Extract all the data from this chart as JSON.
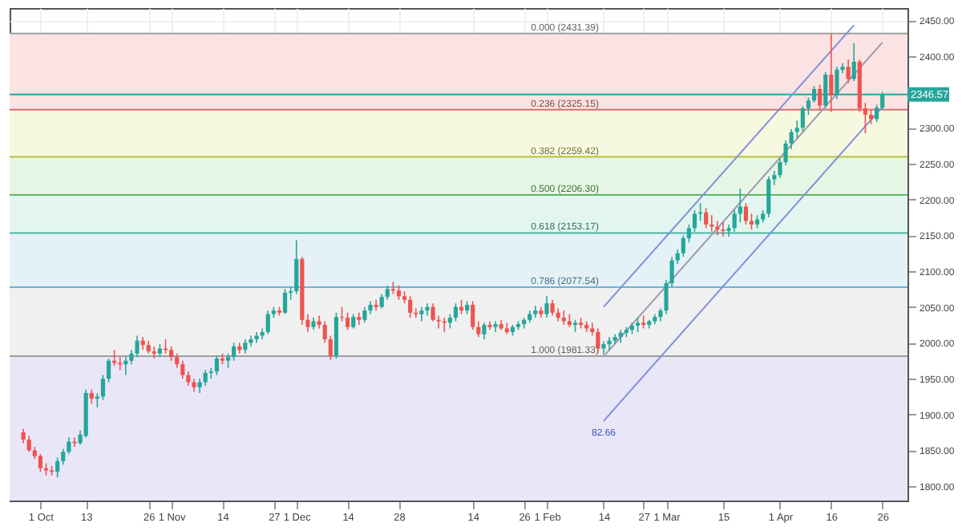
{
  "chart_data": {
    "type": "candlestick",
    "categories": [
      null,
      null,
      null,
      "1 Oct",
      null,
      null,
      null,
      null,
      null,
      null,
      null,
      "13",
      null,
      null,
      null,
      null,
      null,
      null,
      null,
      null,
      null,
      null,
      "26",
      null,
      null,
      null,
      "1 Nov",
      null,
      null,
      null,
      null,
      null,
      null,
      null,
      null,
      "14",
      null,
      null,
      null,
      null,
      null,
      null,
      null,
      null,
      "27",
      null,
      null,
      null,
      "1 Dec",
      null,
      null,
      null,
      null,
      null,
      null,
      null,
      null,
      "14",
      null,
      null,
      null,
      null,
      null,
      null,
      null,
      null,
      "28",
      null,
      null,
      null,
      null,
      null,
      null,
      null,
      null,
      null,
      null,
      null,
      null,
      "14",
      null,
      null,
      null,
      null,
      null,
      null,
      null,
      null,
      "26",
      null,
      null,
      null,
      "1 Feb",
      null,
      null,
      null,
      null,
      null,
      null,
      null,
      null,
      null,
      "14",
      null,
      null,
      null,
      null,
      null,
      null,
      "27",
      null,
      null,
      null,
      "1 Mar",
      null,
      null,
      null,
      null,
      null,
      null,
      null,
      null,
      null,
      "15",
      null,
      null,
      null,
      null,
      null,
      null,
      null,
      null,
      null,
      "1 Apr",
      null,
      null,
      null,
      null,
      null,
      null,
      null,
      null,
      "16",
      null,
      null,
      null,
      null,
      null,
      null,
      null,
      null,
      "26"
    ],
    "ohlc": [
      [
        1875,
        1880,
        1860,
        1865
      ],
      [
        1865,
        1870,
        1848,
        1850
      ],
      [
        1850,
        1855,
        1838,
        1842
      ],
      [
        1842,
        1845,
        1820,
        1825
      ],
      [
        1825,
        1832,
        1815,
        1822
      ],
      [
        1822,
        1828,
        1815,
        1820
      ],
      [
        1820,
        1840,
        1812,
        1835
      ],
      [
        1835,
        1852,
        1830,
        1848
      ],
      [
        1848,
        1868,
        1845,
        1862
      ],
      [
        1862,
        1868,
        1855,
        1860
      ],
      [
        1860,
        1878,
        1858,
        1872
      ],
      [
        1870,
        1935,
        1868,
        1930
      ],
      [
        1930,
        1935,
        1915,
        1922
      ],
      [
        1922,
        1930,
        1910,
        1925
      ],
      [
        1925,
        1955,
        1920,
        1950
      ],
      [
        1950,
        1978,
        1945,
        1975
      ],
      [
        1975,
        1990,
        1968,
        1972
      ],
      [
        1972,
        1980,
        1962,
        1970
      ],
      [
        1970,
        1980,
        1955,
        1975
      ],
      [
        1975,
        1990,
        1970,
        1985
      ],
      [
        1985,
        2010,
        1980,
        2003
      ],
      [
        2003,
        2008,
        1990,
        1997
      ],
      [
        1997,
        2003,
        1985,
        1988
      ],
      [
        1988,
        1995,
        1978,
        1985
      ],
      [
        1985,
        1998,
        1980,
        1992
      ],
      [
        1992,
        2005,
        1985,
        1990
      ],
      [
        1990,
        1995,
        1975,
        1980
      ],
      [
        1980,
        1985,
        1965,
        1970
      ],
      [
        1970,
        1975,
        1950,
        1955
      ],
      [
        1955,
        1960,
        1940,
        1945
      ],
      [
        1945,
        1950,
        1932,
        1938
      ],
      [
        1938,
        1950,
        1930,
        1945
      ],
      [
        1945,
        1962,
        1940,
        1958
      ],
      [
        1958,
        1965,
        1950,
        1960
      ],
      [
        1960,
        1982,
        1955,
        1978
      ],
      [
        1978,
        1985,
        1970,
        1975
      ],
      [
        1975,
        1985,
        1965,
        1980
      ],
      [
        1980,
        2000,
        1975,
        1995
      ],
      [
        1995,
        2000,
        1985,
        1990
      ],
      [
        1990,
        2005,
        1985,
        2000
      ],
      [
        2000,
        2010,
        1995,
        2005
      ],
      [
        2005,
        2015,
        2000,
        2010
      ],
      [
        2010,
        2020,
        2005,
        2015
      ],
      [
        2015,
        2045,
        2012,
        2040
      ],
      [
        2040,
        2050,
        2035,
        2045
      ],
      [
        2045,
        2050,
        2038,
        2042
      ],
      [
        2042,
        2075,
        2040,
        2070
      ],
      [
        2070,
        2078,
        2060,
        2072
      ],
      [
        2072,
        2143,
        2068,
        2117
      ],
      [
        2117,
        2120,
        2025,
        2032
      ],
      [
        2032,
        2040,
        2015,
        2022
      ],
      [
        2022,
        2035,
        2018,
        2030
      ],
      [
        2030,
        2038,
        2020,
        2025
      ],
      [
        2025,
        2030,
        2000,
        2005
      ],
      [
        2005,
        2010,
        1976,
        1982
      ],
      [
        1982,
        2042,
        1978,
        2036
      ],
      [
        2036,
        2050,
        2030,
        2035
      ],
      [
        2035,
        2042,
        2018,
        2022
      ],
      [
        2022,
        2040,
        2020,
        2036
      ],
      [
        2036,
        2042,
        2025,
        2032
      ],
      [
        2032,
        2050,
        2028,
        2045
      ],
      [
        2045,
        2058,
        2040,
        2053
      ],
      [
        2053,
        2060,
        2045,
        2050
      ],
      [
        2050,
        2068,
        2048,
        2064
      ],
      [
        2064,
        2080,
        2060,
        2075
      ],
      [
        2075,
        2085,
        2068,
        2073
      ],
      [
        2073,
        2080,
        2060,
        2065
      ],
      [
        2065,
        2072,
        2055,
        2060
      ],
      [
        2060,
        2065,
        2035,
        2042
      ],
      [
        2042,
        2048,
        2035,
        2040
      ],
      [
        2040,
        2050,
        2030,
        2045
      ],
      [
        2045,
        2055,
        2038,
        2050
      ],
      [
        2050,
        2055,
        2030,
        2032
      ],
      [
        2032,
        2038,
        2020,
        2030
      ],
      [
        2030,
        2035,
        2015,
        2028
      ],
      [
        2028,
        2040,
        2020,
        2035
      ],
      [
        2035,
        2055,
        2030,
        2050
      ],
      [
        2050,
        2060,
        2040,
        2045
      ],
      [
        2045,
        2058,
        2040,
        2053
      ],
      [
        2053,
        2058,
        2018,
        2022
      ],
      [
        2022,
        2030,
        2008,
        2012
      ],
      [
        2012,
        2028,
        2005,
        2025
      ],
      [
        2025,
        2030,
        2018,
        2022
      ],
      [
        2022,
        2030,
        2015,
        2026
      ],
      [
        2026,
        2032,
        2018,
        2020
      ],
      [
        2020,
        2028,
        2012,
        2015
      ],
      [
        2015,
        2025,
        2010,
        2022
      ],
      [
        2022,
        2030,
        2018,
        2026
      ],
      [
        2026,
        2035,
        2020,
        2032
      ],
      [
        2032,
        2045,
        2028,
        2040
      ],
      [
        2040,
        2052,
        2035,
        2045
      ],
      [
        2045,
        2050,
        2035,
        2040
      ],
      [
        2040,
        2065,
        2035,
        2055
      ],
      [
        2055,
        2060,
        2038,
        2042
      ],
      [
        2042,
        2048,
        2030,
        2035
      ],
      [
        2035,
        2045,
        2025,
        2030
      ],
      [
        2030,
        2040,
        2022,
        2025
      ],
      [
        2025,
        2032,
        2015,
        2028
      ],
      [
        2028,
        2035,
        2020,
        2025
      ],
      [
        2025,
        2030,
        2015,
        2020
      ],
      [
        2020,
        2028,
        2010,
        2015
      ],
      [
        2015,
        2020,
        1985,
        1992
      ],
      [
        1992,
        2002,
        1984,
        1998
      ],
      [
        1998,
        2008,
        1990,
        2003
      ],
      [
        2003,
        2012,
        1998,
        2008
      ],
      [
        2008,
        2018,
        2000,
        2014
      ],
      [
        2014,
        2022,
        2008,
        2018
      ],
      [
        2018,
        2028,
        2012,
        2024
      ],
      [
        2024,
        2035,
        2015,
        2028
      ],
      [
        2028,
        2038,
        2020,
        2025
      ],
      [
        2025,
        2032,
        2020,
        2030
      ],
      [
        2030,
        2040,
        2026,
        2036
      ],
      [
        2036,
        2048,
        2030,
        2045
      ],
      [
        2045,
        2088,
        2040,
        2083
      ],
      [
        2083,
        2120,
        2078,
        2115
      ],
      [
        2115,
        2130,
        2110,
        2125
      ],
      [
        2125,
        2150,
        2120,
        2146
      ],
      [
        2146,
        2165,
        2140,
        2160
      ],
      [
        2160,
        2185,
        2155,
        2180
      ],
      [
        2180,
        2195,
        2170,
        2182
      ],
      [
        2182,
        2188,
        2160,
        2165
      ],
      [
        2165,
        2178,
        2155,
        2162
      ],
      [
        2162,
        2170,
        2150,
        2158
      ],
      [
        2158,
        2168,
        2148,
        2156
      ],
      [
        2156,
        2165,
        2148,
        2160
      ],
      [
        2160,
        2185,
        2155,
        2180
      ],
      [
        2180,
        2215,
        2168,
        2190
      ],
      [
        2190,
        2195,
        2165,
        2170
      ],
      [
        2170,
        2180,
        2158,
        2165
      ],
      [
        2165,
        2178,
        2160,
        2172
      ],
      [
        2172,
        2185,
        2168,
        2180
      ],
      [
        2180,
        2232,
        2175,
        2228
      ],
      [
        2228,
        2240,
        2220,
        2234
      ],
      [
        2234,
        2258,
        2230,
        2252
      ],
      [
        2252,
        2282,
        2248,
        2278
      ],
      [
        2278,
        2298,
        2270,
        2294
      ],
      [
        2294,
        2310,
        2285,
        2300
      ],
      [
        2300,
        2330,
        2295,
        2327
      ],
      [
        2327,
        2342,
        2318,
        2338
      ],
      [
        2338,
        2358,
        2335,
        2354
      ],
      [
        2354,
        2360,
        2325,
        2331
      ],
      [
        2331,
        2378,
        2328,
        2374
      ],
      [
        2374,
        2431,
        2322,
        2345
      ],
      [
        2345,
        2385,
        2340,
        2381
      ],
      [
        2381,
        2390,
        2376,
        2385
      ],
      [
        2385,
        2395,
        2362,
        2368
      ],
      [
        2368,
        2418,
        2365,
        2392
      ],
      [
        2392,
        2395,
        2322,
        2327
      ],
      [
        2327,
        2335,
        2292,
        2318
      ],
      [
        2318,
        2325,
        2305,
        2312
      ],
      [
        2312,
        2332,
        2308,
        2328
      ],
      [
        2328,
        2350,
        2325,
        2346.57
      ]
    ],
    "series": [
      {
        "type": "line",
        "color": "#8090d8",
        "values": [
          null,
          null,
          null,
          null,
          null,
          null,
          null,
          null,
          null,
          null,
          null,
          null,
          null,
          null,
          null,
          null,
          null,
          null,
          null,
          null,
          null,
          null,
          null,
          null,
          null,
          null,
          null,
          null,
          null,
          null,
          null,
          null,
          null,
          null,
          null,
          null,
          null,
          null,
          null,
          null,
          null,
          null,
          null,
          null,
          null,
          null,
          null,
          null,
          null,
          null,
          null,
          null,
          null,
          null,
          null,
          null,
          null,
          null,
          null,
          null,
          null,
          null,
          null,
          null,
          null,
          null,
          null,
          null,
          null,
          null,
          null,
          null,
          null,
          null,
          null,
          null,
          null,
          null,
          null,
          null,
          null,
          null,
          null,
          null,
          null,
          null,
          null,
          null,
          null,
          null,
          null,
          null,
          null,
          null,
          null,
          null,
          null,
          null,
          null,
          null,
          null,
          null,
          2050,
          null,
          null,
          null,
          null,
          null,
          null,
          null,
          null,
          null,
          null,
          null,
          null,
          null,
          null,
          null,
          null,
          null,
          null,
          null,
          null,
          null,
          null,
          null,
          null,
          null,
          null,
          null,
          null,
          null,
          null,
          null,
          null,
          null,
          null,
          null,
          null,
          null,
          null,
          null,
          null,
          null,
          null,
          null,
          2443,
          null,
          null,
          null,
          null,
          null
        ]
      },
      {
        "type": "line",
        "color": "#9a9ab0",
        "values": [
          null,
          null,
          null,
          null,
          null,
          null,
          null,
          null,
          null,
          null,
          null,
          null,
          null,
          null,
          null,
          null,
          null,
          null,
          null,
          null,
          null,
          null,
          null,
          null,
          null,
          null,
          null,
          null,
          null,
          null,
          null,
          null,
          null,
          null,
          null,
          null,
          null,
          null,
          null,
          null,
          null,
          null,
          null,
          null,
          null,
          null,
          null,
          null,
          null,
          null,
          null,
          null,
          null,
          null,
          null,
          null,
          null,
          null,
          null,
          null,
          null,
          null,
          null,
          null,
          null,
          null,
          null,
          null,
          null,
          null,
          null,
          null,
          null,
          null,
          null,
          null,
          null,
          null,
          null,
          null,
          null,
          null,
          null,
          null,
          null,
          null,
          null,
          null,
          null,
          null,
          null,
          null,
          null,
          null,
          null,
          null,
          null,
          null,
          null,
          null,
          null,
          null,
          1981,
          null,
          null,
          null,
          null,
          null,
          null,
          null,
          null,
          null,
          null,
          null,
          null,
          null,
          null,
          null,
          null,
          null,
          null,
          null,
          null,
          null,
          null,
          null,
          null,
          null,
          null,
          null,
          null,
          null,
          null,
          null,
          null,
          null,
          null,
          null,
          null,
          null,
          null,
          null,
          null,
          null,
          null,
          null,
          null,
          null,
          null,
          null,
          null,
          2419
        ]
      },
      {
        "type": "line",
        "color": "#8090d8",
        "values": [
          null,
          null,
          null,
          null,
          null,
          null,
          null,
          null,
          null,
          null,
          null,
          null,
          null,
          null,
          null,
          null,
          null,
          null,
          null,
          null,
          null,
          null,
          null,
          null,
          null,
          null,
          null,
          null,
          null,
          null,
          null,
          null,
          null,
          null,
          null,
          null,
          null,
          null,
          null,
          null,
          null,
          null,
          null,
          null,
          null,
          null,
          null,
          null,
          null,
          null,
          null,
          null,
          null,
          null,
          null,
          null,
          null,
          null,
          null,
          null,
          null,
          null,
          null,
          null,
          null,
          null,
          null,
          null,
          null,
          null,
          null,
          null,
          null,
          null,
          null,
          null,
          null,
          null,
          null,
          null,
          null,
          null,
          null,
          null,
          null,
          null,
          null,
          null,
          null,
          null,
          null,
          null,
          null,
          null,
          null,
          null,
          null,
          null,
          null,
          null,
          null,
          null,
          1891,
          null,
          null,
          null,
          null,
          null,
          null,
          null,
          null,
          null,
          null,
          null,
          null,
          null,
          null,
          null,
          null,
          null,
          null,
          null,
          null,
          null,
          null,
          null,
          null,
          null,
          null,
          null,
          null,
          null,
          null,
          null,
          null,
          null,
          null,
          null,
          null,
          null,
          null,
          null,
          null,
          null,
          null,
          null,
          null,
          null,
          null,
          null,
          null,
          2329
        ]
      }
    ],
    "ylim": [
      1780,
      2467
    ],
    "yticks": [
      {
        "value": 1800,
        "label": "1800.00"
      },
      {
        "value": 1850,
        "label": "1850.00"
      },
      {
        "value": 1900,
        "label": "1900.00"
      },
      {
        "value": 1950,
        "label": "1950.00"
      },
      {
        "value": 2000,
        "label": "2000.00"
      },
      {
        "value": 2050,
        "label": "2050.00"
      },
      {
        "value": 2100,
        "label": "2100.00"
      },
      {
        "value": 2150,
        "label": "2150.00"
      },
      {
        "value": 2200,
        "label": "2200.00"
      },
      {
        "value": 2250,
        "label": "2250.00"
      },
      {
        "value": 2300,
        "label": "2300.00"
      },
      {
        "value": 2400,
        "label": "2400.00"
      },
      {
        "value": 2450,
        "label": "2450.00"
      }
    ],
    "grid": true,
    "ref_lines": [
      {
        "axis": "y",
        "value": 2431.39,
        "label": "0.000 (2431.39)",
        "color": "#9e9e9e"
      },
      {
        "axis": "y",
        "value": 2325.15,
        "label": "0.236 (2325.15)",
        "color": "#d9706c"
      },
      {
        "axis": "y",
        "value": 2259.42,
        "label": "0.382 (2259.42)",
        "color": "#b5c23a"
      },
      {
        "axis": "y",
        "value": 2206.3,
        "label": "0.500 (2206.30)",
        "color": "#5cb85c"
      },
      {
        "axis": "y",
        "value": 2153.17,
        "label": "0.618 (2153.17)",
        "color": "#4db6a0"
      },
      {
        "axis": "y",
        "value": 2077.54,
        "label": "0.786 (2077.54)",
        "color": "#6fb3d2"
      },
      {
        "axis": "y",
        "value": 1981.33,
        "label": "1.000 (1981.33)",
        "color": "#9e9e9e"
      },
      {
        "axis": "y",
        "value": 2346.57,
        "label": "2346.57",
        "color": "#26a69a"
      }
    ],
    "bands": [
      {
        "axis": "y",
        "from": 2325.15,
        "to": 2431.39,
        "color": "#fbe3e3"
      },
      {
        "axis": "y",
        "from": 2259.42,
        "to": 2325.15,
        "color": "#f7f8e0"
      },
      {
        "axis": "y",
        "from": 2206.3,
        "to": 2259.42,
        "color": "#e6f6e4"
      },
      {
        "axis": "y",
        "from": 2153.17,
        "to": 2206.3,
        "color": "#e2f6ef"
      },
      {
        "axis": "y",
        "from": 2077.54,
        "to": 2153.17,
        "color": "#e4f2f8"
      },
      {
        "axis": "y",
        "from": 1981.33,
        "to": 2077.54,
        "color": "#f0f0f0"
      },
      {
        "axis": "y",
        "from": 1780,
        "to": 1981.33,
        "color": "#e9e6f8"
      }
    ],
    "annotations": [
      "82.66"
    ]
  }
}
